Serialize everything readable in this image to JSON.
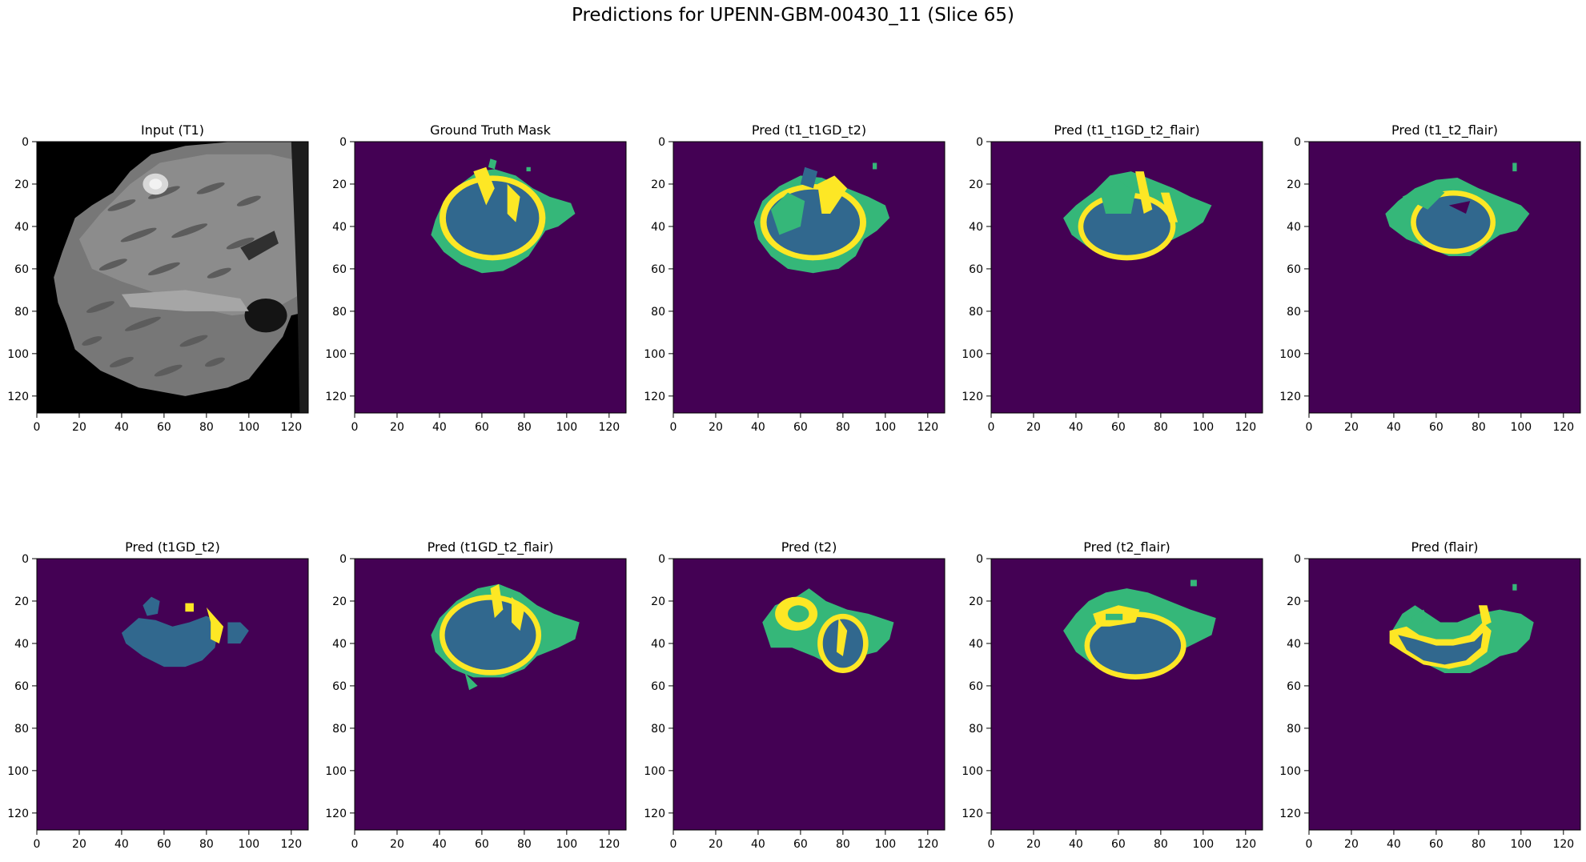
{
  "figure": {
    "title": "Predictions for UPENN-GBM-00430_11 (Slice 65)"
  },
  "axes": {
    "x_ticks": [
      "0",
      "20",
      "40",
      "60",
      "80",
      "100",
      "120"
    ],
    "y_ticks": [
      "0",
      "20",
      "40",
      "60",
      "80",
      "100",
      "120"
    ],
    "x_range": [
      0,
      127
    ],
    "y_range": [
      0,
      127
    ]
  },
  "colors": {
    "background": "#440154",
    "label_1": "#31688e",
    "label_2": "#35b779",
    "label_3": "#fde725"
  },
  "panels": [
    {
      "id": "input-t1",
      "title": "Input (T1)",
      "kind": "mri"
    },
    {
      "id": "ground-truth",
      "title": "Ground Truth Mask",
      "kind": "mask"
    },
    {
      "id": "pred-t1-t1gd-t2",
      "title": "Pred (t1_t1GD_t2)",
      "kind": "mask"
    },
    {
      "id": "pred-t1-t1gd-t2-flair",
      "title": "Pred (t1_t1GD_t2_flair)",
      "kind": "mask"
    },
    {
      "id": "pred-t1-t2-flair",
      "title": "Pred (t1_t2_flair)",
      "kind": "mask"
    },
    {
      "id": "pred-t1gd-t2",
      "title": "Pred (t1GD_t2)",
      "kind": "mask"
    },
    {
      "id": "pred-t1gd-t2-flair",
      "title": "Pred (t1GD_t2_flair)",
      "kind": "mask"
    },
    {
      "id": "pred-t2",
      "title": "Pred (t2)",
      "kind": "mask"
    },
    {
      "id": "pred-t2-flair",
      "title": "Pred (t2_flair)",
      "kind": "mask"
    },
    {
      "id": "pred-flair",
      "title": "Pred (flair)",
      "kind": "mask"
    }
  ]
}
